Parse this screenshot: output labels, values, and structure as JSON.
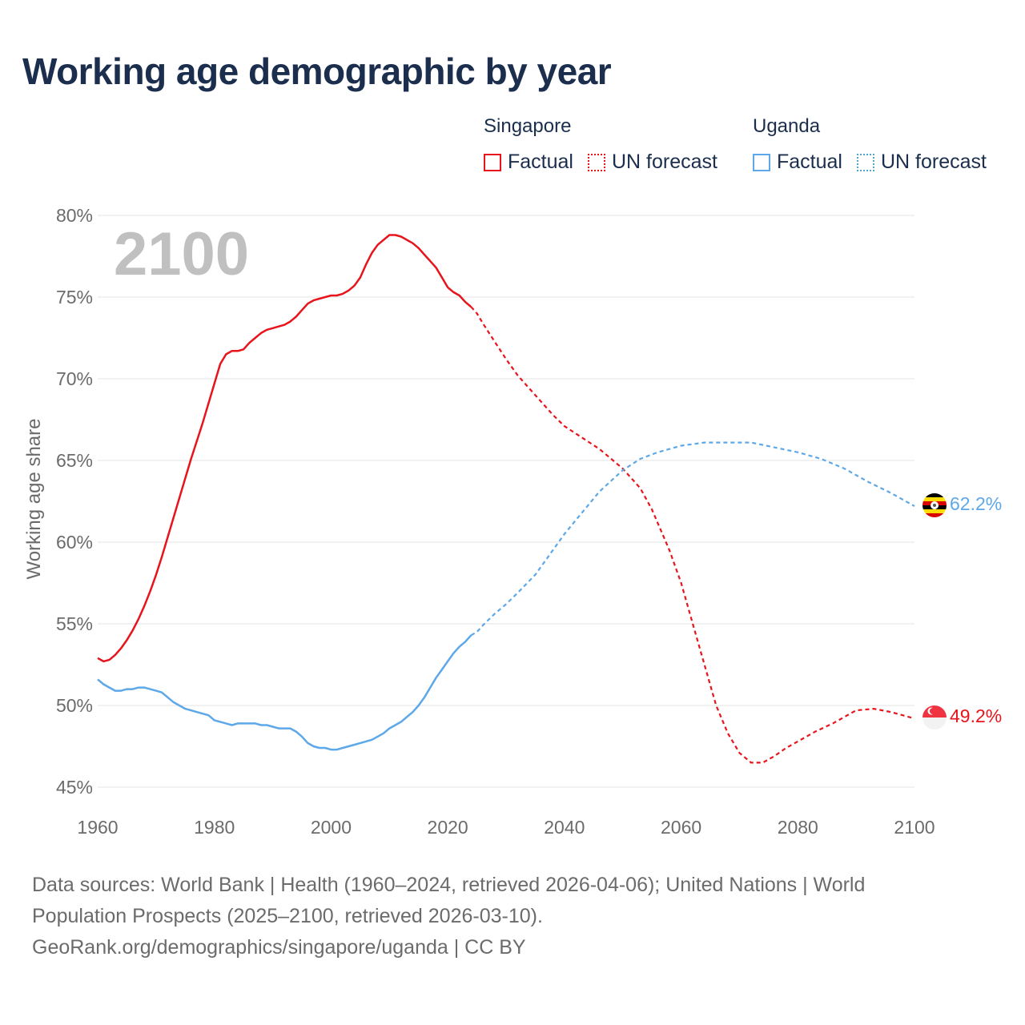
{
  "title": "Working age demographic by year",
  "legend": {
    "groups": [
      {
        "country": "Singapore",
        "factual": "Factual",
        "forecast": "UN forecast",
        "color": "#e8141c"
      },
      {
        "country": "Uganda",
        "factual": "Factual",
        "forecast": "UN forecast",
        "color": "#5da8e8",
        "forecast_color": "#4ea6c8"
      }
    ]
  },
  "year_label": "2100",
  "end_labels": {
    "uganda": "62.2%",
    "singapore": "49.2%"
  },
  "footer": {
    "line1": "Data sources: World Bank | Health (1960–2024, retrieved 2026-04-06); United Nations | World Population Prospects (2025–2100, retrieved 2026-03-10).",
    "line2": "GeoRank.org/demographics/singapore/uganda | CC BY"
  },
  "chart_data": {
    "type": "line",
    "title": "Working age demographic by year",
    "xlabel": "",
    "ylabel": "Working age share",
    "xlim": [
      1960,
      2100
    ],
    "ylim": [
      45,
      80
    ],
    "x_ticks": [
      1960,
      1980,
      2000,
      2020,
      2040,
      2060,
      2080,
      2100
    ],
    "y_ticks": [
      45,
      50,
      55,
      60,
      65,
      70,
      75,
      80
    ],
    "y_tick_labels": [
      "45%",
      "50%",
      "55%",
      "60%",
      "65%",
      "70%",
      "75%",
      "80%"
    ],
    "factual_end_year": 2024,
    "series": [
      {
        "name": "Singapore",
        "color": "#e8141c",
        "points": [
          [
            1960,
            52.9
          ],
          [
            1961,
            52.7
          ],
          [
            1962,
            52.8
          ],
          [
            1963,
            53.1
          ],
          [
            1964,
            53.5
          ],
          [
            1965,
            54.0
          ],
          [
            1966,
            54.6
          ],
          [
            1967,
            55.3
          ],
          [
            1968,
            56.1
          ],
          [
            1969,
            57.0
          ],
          [
            1970,
            58.0
          ],
          [
            1971,
            59.1
          ],
          [
            1972,
            60.3
          ],
          [
            1973,
            61.5
          ],
          [
            1974,
            62.7
          ],
          [
            1975,
            63.9
          ],
          [
            1976,
            65.1
          ],
          [
            1977,
            66.2
          ],
          [
            1978,
            67.3
          ],
          [
            1979,
            68.5
          ],
          [
            1980,
            69.7
          ],
          [
            1981,
            70.9
          ],
          [
            1982,
            71.5
          ],
          [
            1983,
            71.7
          ],
          [
            1984,
            71.7
          ],
          [
            1985,
            71.8
          ],
          [
            1986,
            72.2
          ],
          [
            1987,
            72.5
          ],
          [
            1988,
            72.8
          ],
          [
            1989,
            73.0
          ],
          [
            1990,
            73.1
          ],
          [
            1991,
            73.2
          ],
          [
            1992,
            73.3
          ],
          [
            1993,
            73.5
          ],
          [
            1994,
            73.8
          ],
          [
            1995,
            74.2
          ],
          [
            1996,
            74.6
          ],
          [
            1997,
            74.8
          ],
          [
            1998,
            74.9
          ],
          [
            1999,
            75.0
          ],
          [
            2000,
            75.1
          ],
          [
            2001,
            75.1
          ],
          [
            2002,
            75.2
          ],
          [
            2003,
            75.4
          ],
          [
            2004,
            75.7
          ],
          [
            2005,
            76.2
          ],
          [
            2006,
            77.0
          ],
          [
            2007,
            77.7
          ],
          [
            2008,
            78.2
          ],
          [
            2009,
            78.5
          ],
          [
            2010,
            78.8
          ],
          [
            2011,
            78.8
          ],
          [
            2012,
            78.7
          ],
          [
            2013,
            78.5
          ],
          [
            2014,
            78.3
          ],
          [
            2015,
            78.0
          ],
          [
            2016,
            77.6
          ],
          [
            2017,
            77.2
          ],
          [
            2018,
            76.8
          ],
          [
            2019,
            76.2
          ],
          [
            2020,
            75.6
          ],
          [
            2021,
            75.3
          ],
          [
            2022,
            75.1
          ],
          [
            2023,
            74.7
          ],
          [
            2024,
            74.4
          ],
          [
            2025,
            74.0
          ],
          [
            2026,
            73.4
          ],
          [
            2028,
            72.3
          ],
          [
            2030,
            71.2
          ],
          [
            2032,
            70.2
          ],
          [
            2035,
            69.0
          ],
          [
            2038,
            67.8
          ],
          [
            2040,
            67.1
          ],
          [
            2043,
            66.4
          ],
          [
            2046,
            65.7
          ],
          [
            2050,
            64.5
          ],
          [
            2053,
            63.3
          ],
          [
            2055,
            62.0
          ],
          [
            2058,
            59.5
          ],
          [
            2060,
            57.5
          ],
          [
            2062,
            55.0
          ],
          [
            2064,
            52.5
          ],
          [
            2066,
            50.0
          ],
          [
            2068,
            48.3
          ],
          [
            2070,
            47.1
          ],
          [
            2072,
            46.5
          ],
          [
            2074,
            46.5
          ],
          [
            2076,
            46.9
          ],
          [
            2078,
            47.4
          ],
          [
            2080,
            47.8
          ],
          [
            2083,
            48.4
          ],
          [
            2086,
            48.9
          ],
          [
            2090,
            49.7
          ],
          [
            2093,
            49.8
          ],
          [
            2096,
            49.6
          ],
          [
            2100,
            49.2
          ]
        ]
      },
      {
        "name": "Uganda",
        "color": "#5da8e8",
        "points": [
          [
            1960,
            51.6
          ],
          [
            1961,
            51.3
          ],
          [
            1962,
            51.1
          ],
          [
            1963,
            50.9
          ],
          [
            1964,
            50.9
          ],
          [
            1965,
            51.0
          ],
          [
            1966,
            51.0
          ],
          [
            1967,
            51.1
          ],
          [
            1968,
            51.1
          ],
          [
            1969,
            51.0
          ],
          [
            1970,
            50.9
          ],
          [
            1971,
            50.8
          ],
          [
            1972,
            50.5
          ],
          [
            1973,
            50.2
          ],
          [
            1974,
            50.0
          ],
          [
            1975,
            49.8
          ],
          [
            1976,
            49.7
          ],
          [
            1977,
            49.6
          ],
          [
            1978,
            49.5
          ],
          [
            1979,
            49.4
          ],
          [
            1980,
            49.1
          ],
          [
            1981,
            49.0
          ],
          [
            1982,
            48.9
          ],
          [
            1983,
            48.8
          ],
          [
            1984,
            48.9
          ],
          [
            1985,
            48.9
          ],
          [
            1986,
            48.9
          ],
          [
            1987,
            48.9
          ],
          [
            1988,
            48.8
          ],
          [
            1989,
            48.8
          ],
          [
            1990,
            48.7
          ],
          [
            1991,
            48.6
          ],
          [
            1992,
            48.6
          ],
          [
            1993,
            48.6
          ],
          [
            1994,
            48.4
          ],
          [
            1995,
            48.1
          ],
          [
            1996,
            47.7
          ],
          [
            1997,
            47.5
          ],
          [
            1998,
            47.4
          ],
          [
            1999,
            47.4
          ],
          [
            2000,
            47.3
          ],
          [
            2001,
            47.3
          ],
          [
            2002,
            47.4
          ],
          [
            2003,
            47.5
          ],
          [
            2004,
            47.6
          ],
          [
            2005,
            47.7
          ],
          [
            2006,
            47.8
          ],
          [
            2007,
            47.9
          ],
          [
            2008,
            48.1
          ],
          [
            2009,
            48.3
          ],
          [
            2010,
            48.6
          ],
          [
            2011,
            48.8
          ],
          [
            2012,
            49.0
          ],
          [
            2013,
            49.3
          ],
          [
            2014,
            49.6
          ],
          [
            2015,
            50.0
          ],
          [
            2016,
            50.5
          ],
          [
            2017,
            51.1
          ],
          [
            2018,
            51.7
          ],
          [
            2019,
            52.2
          ],
          [
            2020,
            52.7
          ],
          [
            2021,
            53.2
          ],
          [
            2022,
            53.6
          ],
          [
            2023,
            53.9
          ],
          [
            2024,
            54.3
          ],
          [
            2025,
            54.5
          ],
          [
            2026,
            54.9
          ],
          [
            2028,
            55.6
          ],
          [
            2030,
            56.2
          ],
          [
            2032,
            56.9
          ],
          [
            2035,
            58.0
          ],
          [
            2038,
            59.5
          ],
          [
            2040,
            60.5
          ],
          [
            2043,
            61.8
          ],
          [
            2046,
            63.1
          ],
          [
            2050,
            64.4
          ],
          [
            2053,
            65.1
          ],
          [
            2056,
            65.5
          ],
          [
            2060,
            65.9
          ],
          [
            2064,
            66.1
          ],
          [
            2068,
            66.1
          ],
          [
            2072,
            66.1
          ],
          [
            2076,
            65.8
          ],
          [
            2080,
            65.5
          ],
          [
            2084,
            65.1
          ],
          [
            2088,
            64.5
          ],
          [
            2092,
            63.7
          ],
          [
            2096,
            63.0
          ],
          [
            2100,
            62.2
          ]
        ]
      }
    ]
  }
}
